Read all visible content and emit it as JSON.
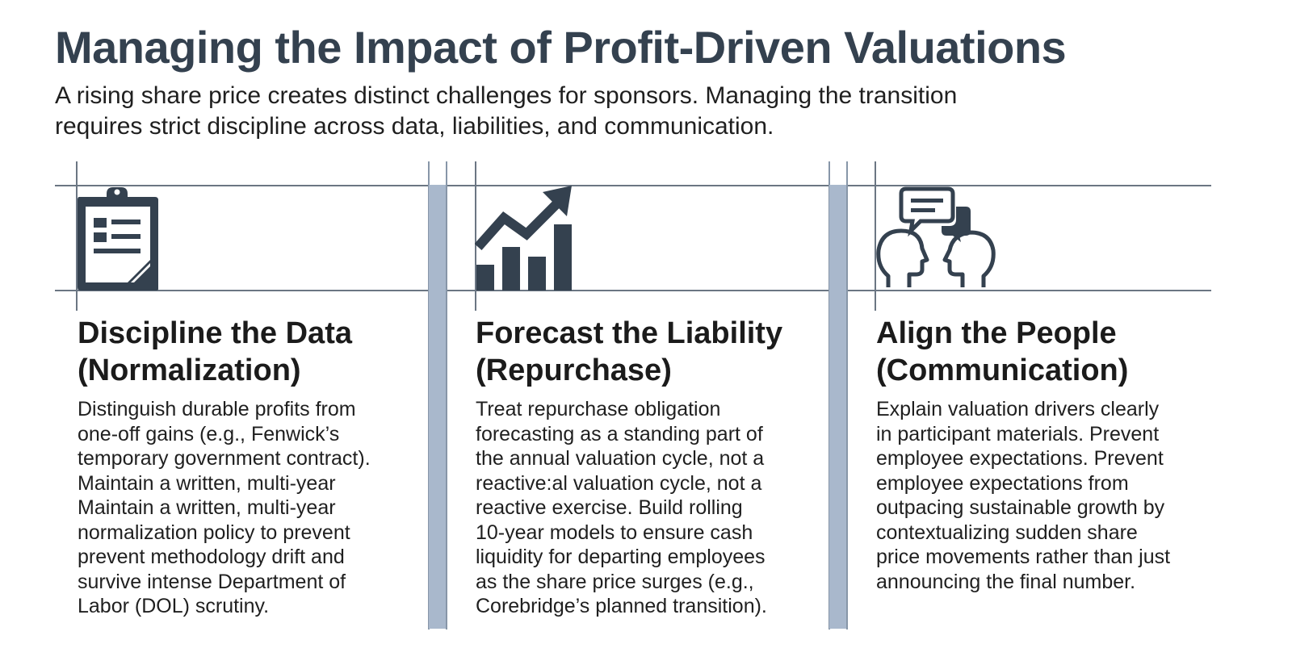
{
  "header": {
    "title": "Managing the Impact of Profit-Driven Valuations",
    "subtitle": "A rising share price creates distinct challenges for sponsors. Managing the transition requires strict discipline across data, liabilities, and communication."
  },
  "columns": [
    {
      "icon": "clipboard-icon",
      "title_line1": "Discipline the Data",
      "title_line2": "(Normalization)",
      "body_lines": [
        "Distinguish durable profits from",
        "one-off gains (e.g., Fenwick’s",
        "temporary government contract).",
        "Maintain a written, multi-year",
        "Maintain a written, multi-year",
        "normalization policy to prevent",
        "prevent methodology drift and",
        "survive intense Department of",
        "Labor (DOL) scrutiny."
      ]
    },
    {
      "icon": "growth-chart-icon",
      "title_line1": "Forecast the Liability",
      "title_line2": "(Repurchase)",
      "body_lines": [
        "Treat repurchase obligation",
        "forecasting as a standing part of",
        "the annual valuation cycle, not a",
        "reactive:al valuation cycle, not a",
        "reactive exercise. Build rolling",
        "10-year models to ensure cash",
        "liquidity for departing employees",
        "as the share price surges (e.g.,",
        "Corebridge’s planned transition)."
      ]
    },
    {
      "icon": "conversation-icon",
      "title_line1": "Align the People",
      "title_line2": "(Communication)",
      "body_lines": [
        "Explain valuation drivers clearly",
        "in participant materials. Prevent",
        "employee expectations. Prevent",
        "employee expectations from",
        "outpacing sustainable growth by",
        "contextualizing sudden share",
        "price movements rather than just",
        "announcing the final number."
      ]
    }
  ],
  "colors": {
    "title": "#34414f",
    "icon": "#34414f",
    "divider_bar": "#a9b8cc",
    "grid_line": "#6b7683"
  }
}
